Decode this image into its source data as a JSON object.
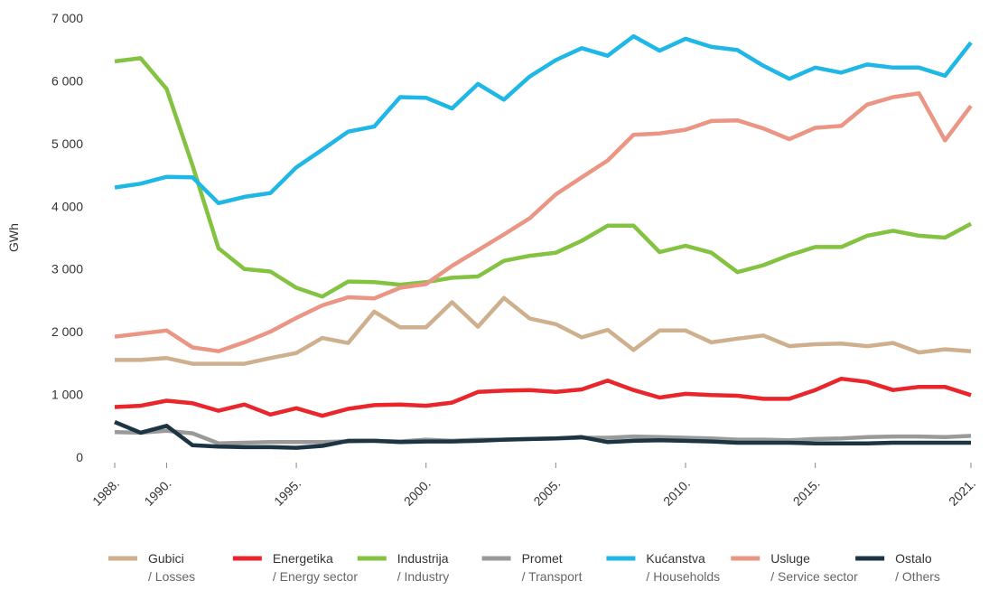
{
  "chart_data": {
    "type": "line",
    "y_label": "GWh",
    "x": [
      1988,
      1989,
      1990,
      1991,
      1992,
      1993,
      1994,
      1995,
      1996,
      1997,
      1998,
      1999,
      2000,
      2001,
      2002,
      2003,
      2004,
      2005,
      2006,
      2007,
      2008,
      2009,
      2010,
      2011,
      2012,
      2013,
      2014,
      2015,
      2016,
      2017,
      2018,
      2019,
      2020,
      2021
    ],
    "xlim": [
      1988,
      2021
    ],
    "xticks": [
      {
        "value": 1988,
        "label": "1988."
      },
      {
        "value": 1990,
        "label": "1990."
      },
      {
        "value": 1995,
        "label": "1995."
      },
      {
        "value": 2000,
        "label": "2000."
      },
      {
        "value": 2005,
        "label": "2005."
      },
      {
        "value": 2010,
        "label": "2010."
      },
      {
        "value": 2015,
        "label": "2015."
      },
      {
        "value": 2021,
        "label": "2021."
      }
    ],
    "ylim": [
      0,
      7000
    ],
    "yticks": [
      0,
      {
        "value": 1000,
        "label": "1 000"
      },
      {
        "value": 2000,
        "label": "2 000"
      },
      {
        "value": 3000,
        "label": "3 000"
      },
      {
        "value": 4000,
        "label": "4 000"
      },
      {
        "value": 5000,
        "label": "5 000"
      },
      {
        "value": 6000,
        "label": "6 000"
      },
      {
        "value": 7000,
        "label": "7 000"
      }
    ],
    "grid": false,
    "legend": "bottom",
    "series": [
      {
        "name": "Gubici",
        "subname": "/ Losses",
        "color": "#cfb08e",
        "values": [
          1550,
          1550,
          1580,
          1490,
          1490,
          1490,
          1580,
          1660,
          1900,
          1820,
          2320,
          2070,
          2070,
          2470,
          2080,
          2540,
          2210,
          2120,
          1910,
          2030,
          1710,
          2020,
          2020,
          1830,
          1890,
          1940,
          1770,
          1800,
          1810,
          1770,
          1820,
          1670,
          1720,
          1690
        ]
      },
      {
        "name": "Energetika",
        "subname": "/ Energy sector",
        "color": "#e8262b",
        "values": [
          800,
          820,
          900,
          860,
          740,
          840,
          680,
          780,
          660,
          770,
          830,
          840,
          820,
          870,
          1040,
          1060,
          1070,
          1040,
          1080,
          1220,
          1070,
          950,
          1010,
          990,
          980,
          930,
          930,
          1070,
          1250,
          1200,
          1070,
          1120,
          1120,
          990
        ]
      },
      {
        "name": "Industrija",
        "subname": "/ Industry",
        "color": "#84c341",
        "values": [
          6310,
          6360,
          5870,
          4650,
          3330,
          3000,
          2960,
          2700,
          2560,
          2800,
          2790,
          2750,
          2790,
          2860,
          2880,
          3130,
          3210,
          3260,
          3450,
          3690,
          3690,
          3270,
          3370,
          3260,
          2950,
          3060,
          3220,
          3350,
          3350,
          3530,
          3610,
          3530,
          3500,
          3720
        ]
      },
      {
        "name": "Promet",
        "subname": "/ Transport",
        "color": "#9a9a9a",
        "values": [
          400,
          390,
          420,
          380,
          220,
          230,
          240,
          240,
          240,
          250,
          260,
          250,
          280,
          260,
          280,
          280,
          290,
          300,
          310,
          310,
          330,
          320,
          310,
          300,
          280,
          280,
          270,
          290,
          300,
          320,
          330,
          330,
          320,
          340
        ]
      },
      {
        "name": "Kućanstva",
        "subname": "/ Households",
        "color": "#1fb7e6",
        "values": [
          4300,
          4360,
          4470,
          4460,
          4050,
          4150,
          4210,
          4620,
          4900,
          5190,
          5270,
          5740,
          5730,
          5560,
          5950,
          5700,
          6070,
          6330,
          6520,
          6400,
          6710,
          6480,
          6670,
          6540,
          6490,
          6240,
          6030,
          6210,
          6130,
          6260,
          6210,
          6210,
          6080,
          6610
        ]
      },
      {
        "name": "Usluge",
        "subname": "/ Service sector",
        "color": "#eb9585",
        "values": [
          1920,
          1970,
          2020,
          1750,
          1690,
          1830,
          2000,
          2220,
          2420,
          2550,
          2530,
          2700,
          2760,
          3050,
          3300,
          3550,
          3810,
          4190,
          4460,
          4730,
          5140,
          5160,
          5220,
          5360,
          5370,
          5240,
          5070,
          5250,
          5280,
          5620,
          5740,
          5800,
          5050,
          5600
        ]
      },
      {
        "name": "Ostalo",
        "subname": "/ Others",
        "color": "#1c3444",
        "values": [
          560,
          390,
          500,
          190,
          170,
          160,
          160,
          150,
          180,
          260,
          260,
          240,
          250,
          250,
          260,
          280,
          290,
          300,
          320,
          240,
          260,
          270,
          260,
          250,
          230,
          230,
          230,
          220,
          220,
          220,
          230,
          230,
          230,
          230
        ]
      }
    ]
  }
}
